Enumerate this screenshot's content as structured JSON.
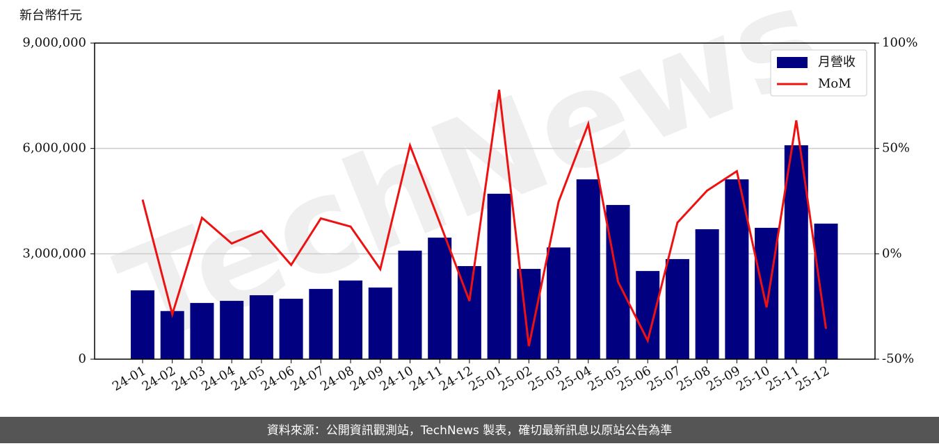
{
  "chart_data": {
    "type": "bar_line",
    "y_unit_label": "新台幣仟元",
    "watermark": "TechNews",
    "footer": "資料來源：公開資訊觀測站，TechNews 製表，確切最新訊息以原站公告為準",
    "categories": [
      "24-01",
      "24-02",
      "24-03",
      "24-04",
      "24-05",
      "24-06",
      "24-07",
      "24-08",
      "24-09",
      "24-10",
      "24-11",
      "24-12",
      "25-01",
      "25-02",
      "25-03",
      "25-04",
      "25-05",
      "25-06",
      "25-07",
      "25-08",
      "25-09",
      "25-10",
      "25-11",
      "25-12"
    ],
    "series": [
      {
        "name": "月營收",
        "type": "bar",
        "color": "#000080",
        "values": [
          1960000,
          1370000,
          1600000,
          1660000,
          1820000,
          1720000,
          2000000,
          2240000,
          2040000,
          3090000,
          3460000,
          2650000,
          4710000,
          2570000,
          3180000,
          5120000,
          4390000,
          2510000,
          2850000,
          3700000,
          5120000,
          3740000,
          6090000,
          3860000
        ]
      },
      {
        "name": "MoM",
        "type": "line",
        "axis": "y2",
        "color": "#ee1111",
        "values": [
          25.7,
          -28.7,
          17.1,
          4.9,
          10.9,
          -5.3,
          16.8,
          12.9,
          -7.3,
          51.4,
          14.8,
          -22.4,
          77.8,
          -43.8,
          24.7,
          61.6,
          -13.2,
          -41.2,
          14.8,
          30.0,
          39.2,
          -25.4,
          63.3,
          -35.6
        ]
      }
    ],
    "ylim": [
      0,
      9000000
    ],
    "yticks": [
      0,
      {
        "value": 3000000,
        "label": "3,000,000"
      },
      {
        "value": 6000000,
        "label": "6,000,000"
      },
      {
        "value": 9000000,
        "label": "9,000,000"
      }
    ],
    "y2lim": [
      -50,
      100
    ],
    "y2ticks": [
      {
        "value": -50,
        "label": "-50%"
      },
      {
        "value": 0,
        "label": "0%"
      },
      {
        "value": 50,
        "label": "50%"
      },
      {
        "value": 100,
        "label": "100%"
      }
    ],
    "grid": true,
    "legend": "upper right"
  }
}
